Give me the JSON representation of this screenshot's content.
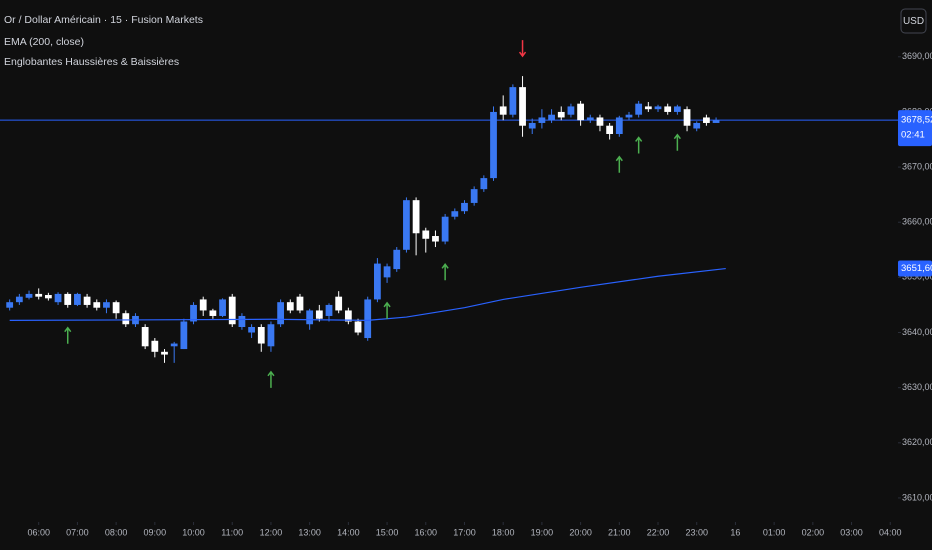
{
  "chart_data": {
    "type": "candlestick",
    "title": "Or / Dollar Américain · 15 · Fusion Markets",
    "indicator_legend": "Englobantes Haussières & Baissières",
    "currency_button": "USD",
    "up_color": "#3a78f2",
    "down_color": "#ffffff",
    "x": [
      5.25,
      5.5,
      5.75,
      6,
      6.25,
      6.5,
      6.75,
      7,
      7.25,
      7.5,
      7.75,
      8,
      8.25,
      8.5,
      8.75,
      9,
      9.25,
      9.5,
      9.75,
      10,
      10.25,
      10.5,
      10.75,
      11,
      11.25,
      11.5,
      11.75,
      12,
      12.25,
      12.5,
      12.75,
      13,
      13.25,
      13.5,
      13.75,
      14,
      14.25,
      14.5,
      14.75,
      15,
      15.25,
      15.5,
      15.75,
      16,
      16.25,
      16.5,
      16.75,
      17,
      17.25,
      17.5,
      17.75,
      18,
      18.25,
      18.5,
      18.75,
      19,
      19.25,
      19.5,
      19.75,
      20,
      20.25,
      20.5,
      20.75,
      21,
      21.25,
      21.5,
      21.75,
      22,
      22.25,
      22.5,
      22.75,
      23,
      23.25,
      23.5
    ],
    "open": [
      3644.5,
      3645.5,
      3646.3,
      3647,
      3646.8,
      3645.5,
      3647,
      3645,
      3646.5,
      3645.5,
      3644.5,
      3645.5,
      3643.5,
      3641.5,
      3641,
      3638.5,
      3636.5,
      3637.5,
      3637,
      3642,
      3646,
      3644,
      3643,
      3646.5,
      3641,
      3640,
      3641,
      3637.5,
      3641.5,
      3645.5,
      3646.5,
      3641.5,
      3644,
      3643,
      3646.5,
      3644,
      3642,
      3639,
      3646,
      3650,
      3651.5,
      3655,
      3664,
      3658.5,
      3657.5,
      3656.5,
      3661,
      3662,
      3663.5,
      3666,
      3668,
      3681,
      3679.5,
      3684.5,
      3677,
      3678,
      3678.5,
      3680,
      3679.5,
      3681.5,
      3678.5,
      3679,
      3677.5,
      3676,
      3679,
      3679.5,
      3681,
      3680.5,
      3681,
      3680,
      3680.5,
      3677,
      3679,
      3678
    ],
    "high": [
      3646,
      3647,
      3647.6,
      3648,
      3647.2,
      3647.3,
      3647.3,
      3647.2,
      3647,
      3646,
      3646,
      3645.8,
      3644,
      3643.5,
      3641.5,
      3639,
      3637,
      3638.3,
      3642.5,
      3645.5,
      3646.5,
      3644.3,
      3646.2,
      3647,
      3643.5,
      3641.5,
      3641.5,
      3642,
      3646,
      3646,
      3647,
      3644.3,
      3645,
      3645.3,
      3647.5,
      3644.5,
      3642.5,
      3646.5,
      3653.5,
      3652.5,
      3655.5,
      3664.5,
      3664.5,
      3659,
      3658.5,
      3661.5,
      3662.5,
      3664,
      3666.5,
      3668.5,
      3681,
      3683,
      3685,
      3686.5,
      3678.8,
      3680.5,
      3680.5,
      3681,
      3681.5,
      3682,
      3679.5,
      3679.5,
      3678,
      3679.3,
      3680,
      3682,
      3681.8,
      3681.3,
      3681.5,
      3681.3,
      3681,
      3678.3,
      3679.5,
      3679
    ],
    "low": [
      3644,
      3645,
      3646,
      3646,
      3645.8,
      3645,
      3644.5,
      3644.8,
      3644.5,
      3644,
      3643.5,
      3642.5,
      3641,
      3641,
      3637,
      3635.5,
      3634.5,
      3634.5,
      3637,
      3641.5,
      3643,
      3642.5,
      3642.8,
      3641,
      3640.5,
      3639,
      3636.5,
      3636.5,
      3641,
      3643.5,
      3643.5,
      3640.5,
      3642,
      3642,
      3643.5,
      3641.5,
      3639.5,
      3638.5,
      3645.5,
      3649,
      3651,
      3654.5,
      3654,
      3654.5,
      3655.5,
      3656,
      3660.5,
      3661.5,
      3663,
      3665.5,
      3667.5,
      3678.5,
      3679,
      3675.5,
      3676,
      3677,
      3678,
      3678.5,
      3679,
      3677.5,
      3678,
      3676.5,
      3675,
      3675.5,
      3678.5,
      3679,
      3680,
      3680,
      3679.5,
      3679.5,
      3676.5,
      3676.5,
      3677.5,
      3678.2
    ],
    "close": [
      3645.5,
      3646.5,
      3647,
      3646.5,
      3646.2,
      3647,
      3645,
      3647,
      3645,
      3644.5,
      3645.5,
      3643.5,
      3641.5,
      3643,
      3637.5,
      3636.5,
      3636,
      3638,
      3642,
      3645,
      3644,
      3643,
      3646,
      3641.5,
      3643,
      3641,
      3638,
      3641.5,
      3645.5,
      3644,
      3644,
      3644,
      3642.5,
      3645,
      3644,
      3642,
      3640,
      3646,
      3652.5,
      3652,
      3655,
      3664,
      3658,
      3657,
      3656.5,
      3661,
      3662,
      3663.5,
      3666,
      3668,
      3680,
      3679.5,
      3684.5,
      3677.5,
      3678,
      3679,
      3679.5,
      3679,
      3681,
      3678.5,
      3679,
      3677.5,
      3676,
      3679,
      3679.5,
      3681.5,
      3680.5,
      3681,
      3680,
      3681,
      3677.5,
      3678,
      3678,
      3678.5
    ],
    "ema": {
      "name": "EMA (200, close)",
      "color": "#2962ff",
      "x": [
        5.25,
        9,
        12,
        14.5,
        15.5,
        17,
        18,
        20,
        22,
        23.75
      ],
      "values": [
        3642.2,
        3642.3,
        3642.4,
        3642.2,
        3642.8,
        3644.5,
        3646,
        3648.2,
        3650.2,
        3651.6
      ],
      "end_label": {
        "value": 3651.6,
        "label": "3651,60"
      }
    },
    "last_price": {
      "value": 3678.52,
      "label": "3678,52"
    },
    "countdown": "02:41",
    "signals": [
      {
        "x": 6.75,
        "direction": "up",
        "color": "#4caf50"
      },
      {
        "x": 12,
        "direction": "up",
        "color": "#4caf50"
      },
      {
        "x": 15,
        "direction": "up",
        "color": "#4caf50"
      },
      {
        "x": 16.5,
        "direction": "up",
        "color": "#4caf50"
      },
      {
        "x": 18.5,
        "direction": "down",
        "color": "#f23645"
      },
      {
        "x": 21,
        "direction": "up",
        "color": "#4caf50"
      },
      {
        "x": 21.5,
        "direction": "up",
        "color": "#4caf50"
      },
      {
        "x": 22.5,
        "direction": "up",
        "color": "#4caf50"
      }
    ],
    "xlim": [
      5,
      28.2
    ],
    "ylim": [
      3606,
      3700.3
    ],
    "yticks": [
      {
        "value": 3610,
        "label": "3610,00"
      },
      {
        "value": 3620,
        "label": "3620,00"
      },
      {
        "value": 3630,
        "label": "3630,00"
      },
      {
        "value": 3640,
        "label": "3640,00"
      },
      {
        "value": 3650,
        "label": "3650,00"
      },
      {
        "value": 3660,
        "label": "3660,00"
      },
      {
        "value": 3670,
        "label": "3670,00"
      },
      {
        "value": 3680,
        "label": "3680,00"
      },
      {
        "value": 3690,
        "label": "3690,00"
      }
    ],
    "xticks": [
      {
        "value": 6,
        "label": "06:00"
      },
      {
        "value": 7,
        "label": "07:00"
      },
      {
        "value": 8,
        "label": "08:00"
      },
      {
        "value": 9,
        "label": "09:00"
      },
      {
        "value": 10,
        "label": "10:00"
      },
      {
        "value": 11,
        "label": "11:00"
      },
      {
        "value": 12,
        "label": "12:00"
      },
      {
        "value": 13,
        "label": "13:00"
      },
      {
        "value": 14,
        "label": "14:00"
      },
      {
        "value": 15,
        "label": "15:00"
      },
      {
        "value": 16,
        "label": "16:00"
      },
      {
        "value": 17,
        "label": "17:00"
      },
      {
        "value": 18,
        "label": "18:00"
      },
      {
        "value": 19,
        "label": "19:00"
      },
      {
        "value": 20,
        "label": "20:00"
      },
      {
        "value": 21,
        "label": "21:00"
      },
      {
        "value": 22,
        "label": "22:00"
      },
      {
        "value": 23,
        "label": "23:00"
      },
      {
        "value": 24,
        "label": "16"
      },
      {
        "value": 25,
        "label": "01:00"
      },
      {
        "value": 26,
        "label": "02:00"
      },
      {
        "value": 27,
        "label": "03:00"
      },
      {
        "value": 28,
        "label": "04:00"
      }
    ]
  }
}
